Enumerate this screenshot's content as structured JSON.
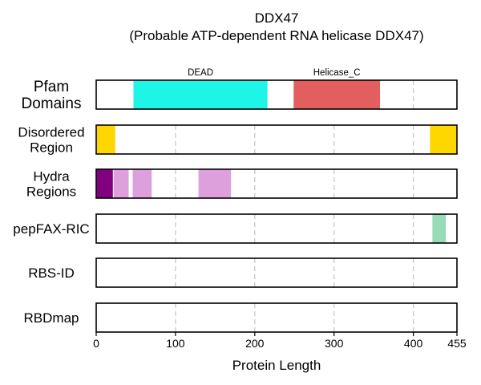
{
  "chart_data": {
    "type": "bar",
    "title_line1": "DDX47",
    "title_line2": "(Probable ATP-dependent RNA helicase DDX47)",
    "xlabel": "Protein Length",
    "xlim": [
      0,
      455
    ],
    "xticks": [
      {
        "value": 0,
        "label": "0"
      },
      {
        "value": 100,
        "label": "100"
      },
      {
        "value": 200,
        "label": "200"
      },
      {
        "value": 300,
        "label": "300"
      },
      {
        "value": 400,
        "label": "400"
      },
      {
        "value": 455,
        "label": "455"
      }
    ],
    "gridlines": [
      100,
      200,
      300,
      400
    ],
    "rows": [
      {
        "label_lines": [
          "Pfam",
          "Domains"
        ],
        "segments": [
          {
            "start": 47,
            "end": 216,
            "color": "#1ef5e6",
            "label": "DEAD"
          },
          {
            "start": 249,
            "end": 358,
            "color": "#e35f5f",
            "label": "Helicase_C"
          }
        ]
      },
      {
        "label_lines": [
          "Disordered",
          "Region"
        ],
        "segments": [
          {
            "start": 0,
            "end": 24,
            "color": "#ffd700"
          },
          {
            "start": 421,
            "end": 455,
            "color": "#ffd700"
          }
        ]
      },
      {
        "label_lines": [
          "Hydra",
          "Regions"
        ],
        "segments": [
          {
            "start": 0,
            "end": 21,
            "color": "#800080"
          },
          {
            "start": 22,
            "end": 41,
            "color": "#dda0dd"
          },
          {
            "start": 46,
            "end": 70,
            "color": "#dda0dd"
          },
          {
            "start": 129,
            "end": 170,
            "color": "#dda0dd"
          }
        ]
      },
      {
        "label_lines": [
          "pepFAX-RIC"
        ],
        "segments": [
          {
            "start": 424,
            "end": 441,
            "color": "#98dbb9"
          }
        ]
      },
      {
        "label_lines": [
          "RBS-ID"
        ],
        "segments": []
      },
      {
        "label_lines": [
          "RBDmap"
        ],
        "segments": []
      }
    ]
  }
}
